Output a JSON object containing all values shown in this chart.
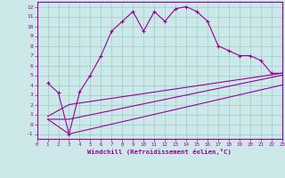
{
  "xlabel": "Windchill (Refroidissement éolien,°C)",
  "xlim": [
    0,
    23
  ],
  "ylim": [
    -1.5,
    12.5
  ],
  "xticks": [
    0,
    1,
    2,
    3,
    4,
    5,
    6,
    7,
    8,
    9,
    10,
    11,
    12,
    13,
    14,
    15,
    16,
    17,
    18,
    19,
    20,
    21,
    22,
    23
  ],
  "yticks": [
    -1,
    0,
    1,
    2,
    3,
    4,
    5,
    6,
    7,
    8,
    9,
    10,
    11,
    12
  ],
  "line_color": "#990099",
  "bg_color": "#cce8e8",
  "grid_color": "#99cccc",
  "line1_x": [
    1,
    2,
    3,
    4,
    5,
    6,
    7,
    8,
    9,
    10,
    11,
    12,
    13,
    14,
    15,
    16,
    17,
    18,
    19,
    20,
    21,
    22,
    23
  ],
  "line1_y": [
    4.2,
    3.2,
    -1.0,
    3.3,
    5.0,
    7.0,
    9.5,
    10.5,
    11.5,
    9.5,
    11.5,
    10.5,
    11.8,
    12.0,
    11.5,
    10.5,
    8.0,
    7.5,
    7.0,
    7.0,
    6.5,
    5.2,
    5.2
  ],
  "line2_x": [
    1,
    3,
    23
  ],
  "line2_y": [
    0.8,
    2.0,
    5.2
  ],
  "line3_x": [
    1,
    3,
    23
  ],
  "line3_y": [
    0.5,
    0.5,
    5.0
  ],
  "line4_x": [
    1,
    3,
    23
  ],
  "line4_y": [
    0.5,
    -1.0,
    4.0
  ]
}
